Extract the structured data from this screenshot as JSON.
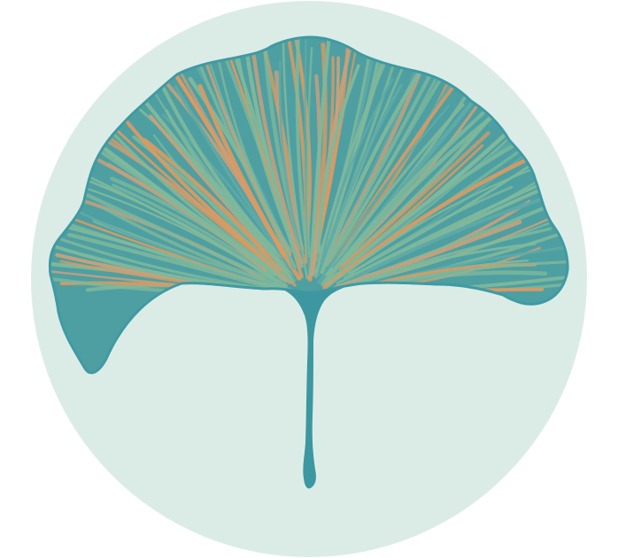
{
  "illustration": {
    "subject": "ginkgo-leaf",
    "colors": {
      "page_background": "#ffffff",
      "circle_background": "#dbece6",
      "leaf_outline": "#3f9aa3",
      "leaf_fill": "#4e9fa2",
      "vein_green": "#7fb89b",
      "vein_teal": "#5faaa7",
      "vein_orange": "#d99a63",
      "vein_tan": "#c7a07c",
      "stem": "#3c97a0"
    }
  }
}
